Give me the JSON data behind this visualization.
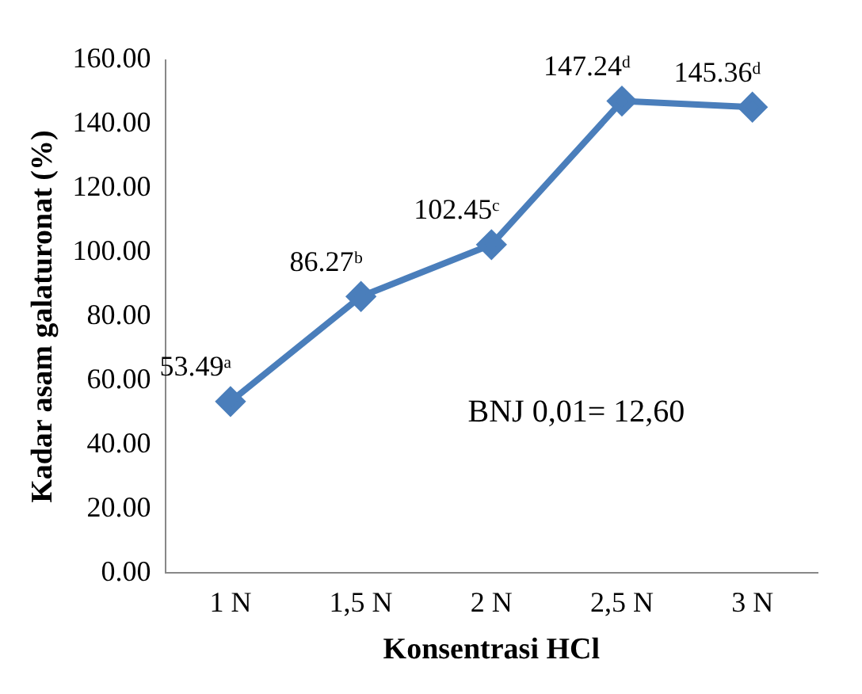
{
  "chart_data": {
    "type": "line",
    "xlabel": "Konsentrasi HCl",
    "ylabel": "Kadar asam galaturonat (%)",
    "categories": [
      "1 N",
      "1,5 N",
      "2 N",
      "2,5 N",
      "3 N"
    ],
    "series": [
      {
        "color": "#4a7ebb",
        "values": [
          53.49,
          86.27,
          102.45,
          147.24,
          145.36
        ],
        "value_labels": [
          "53.49ᵃ",
          "86.27ᵇ",
          "102.45ᶜ",
          "147.24ᵈ",
          "145.36ᵈ"
        ]
      }
    ],
    "ylim": [
      0,
      160
    ],
    "yticks": [
      {
        "value": 0,
        "label": "0.00"
      },
      {
        "value": 20,
        "label": "20.00"
      },
      {
        "value": 40,
        "label": "40.00"
      },
      {
        "value": 60,
        "label": "60.00"
      },
      {
        "value": 80,
        "label": "80.00"
      },
      {
        "value": 100,
        "label": "100.00"
      },
      {
        "value": 120,
        "label": "120.00"
      },
      {
        "value": 140,
        "label": "140.00"
      },
      {
        "value": 160,
        "label": "160.00"
      }
    ],
    "annotations": [
      "BNJ 0,01= 12,60"
    ],
    "grid": false,
    "legend": false,
    "marker": "diamond",
    "line_style": "solid"
  }
}
